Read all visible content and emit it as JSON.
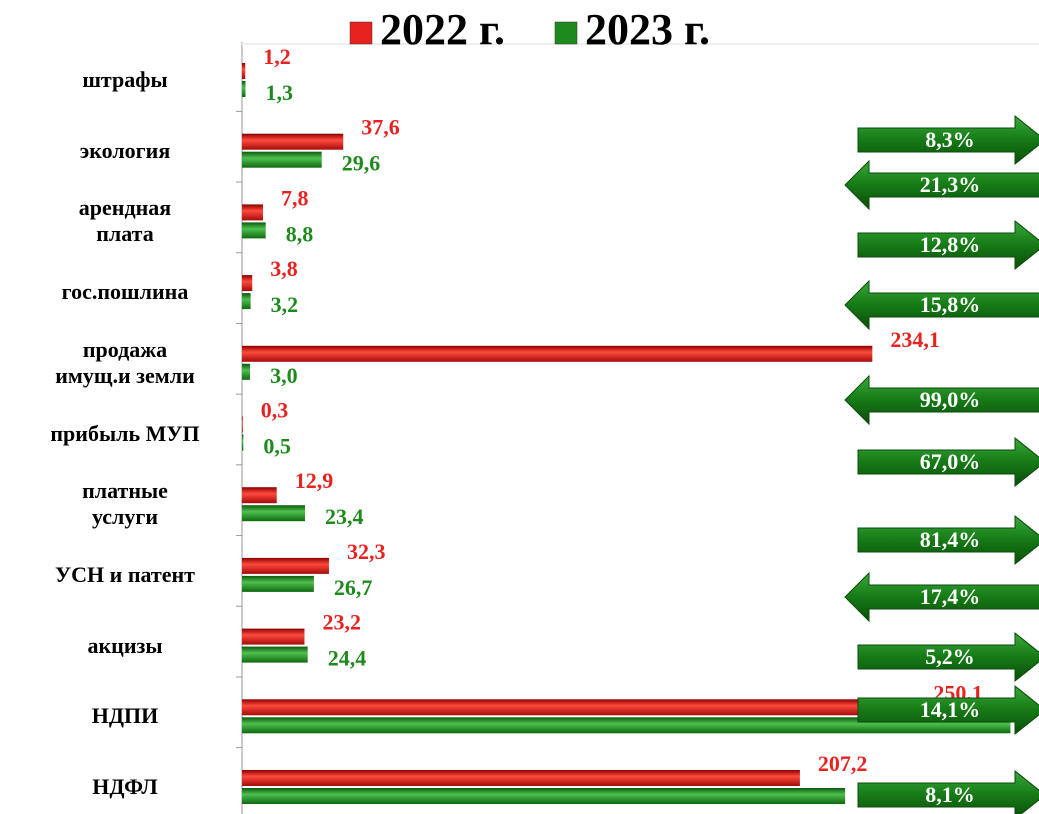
{
  "chart_data": {
    "type": "hbar",
    "categories": [
      "штрафы",
      "экология",
      "арендная\nплата",
      "гос.пошлина",
      "продажа\nимущ.и земли",
      "прибыль МУП",
      "платные\nуслуги",
      "УСН и патент",
      "акцизы",
      "НДПИ",
      "НДФЛ"
    ],
    "series": [
      {
        "name": "2022 г.",
        "color": "#e8231f",
        "values": [
          1.2,
          37.6,
          7.8,
          3.8,
          234.1,
          0.3,
          12.9,
          32.3,
          23.2,
          250.1,
          207.2
        ],
        "value_labels": [
          "1,2",
          "37,6",
          "7,8",
          "3,8",
          "234,1",
          "0,3",
          "12,9",
          "32,3",
          "23,2",
          "250,1",
          "207,2"
        ]
      },
      {
        "name": "2023 г.",
        "color": "#1e8a1e",
        "values": [
          1.3,
          29.6,
          8.8,
          3.2,
          3.0,
          0.5,
          23.4,
          26.7,
          24.4,
          285.4,
          224.0
        ],
        "value_labels": [
          "1,3",
          "29,6",
          "8,8",
          "3,2",
          "3,0",
          "0,5",
          "23,4",
          "26,7",
          "24,4",
          null,
          null
        ]
      }
    ],
    "xlim": [
      0,
      296
    ],
    "annotations": [
      {
        "text": "8,3%",
        "direction": "right"
      },
      {
        "text": "21,3%",
        "direction": "left"
      },
      {
        "text": "12,8%",
        "direction": "right"
      },
      {
        "text": "15,8%",
        "direction": "left"
      },
      {
        "text": "99,0%",
        "direction": "left"
      },
      {
        "text": "67,0%",
        "direction": "right"
      },
      {
        "text": "81,4%",
        "direction": "right"
      },
      {
        "text": "17,4%",
        "direction": "left"
      },
      {
        "text": "5,2%",
        "direction": "right"
      },
      {
        "text": "14,1%",
        "direction": "right"
      },
      {
        "text": "8,1%",
        "direction": "right"
      }
    ]
  }
}
